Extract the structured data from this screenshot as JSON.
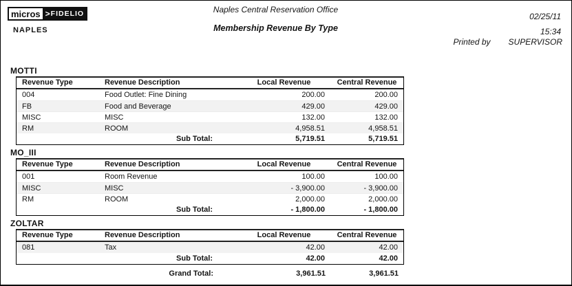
{
  "header": {
    "logo": {
      "micros": "micros",
      "arrow": ">",
      "fidelio": "FIDELIO"
    },
    "office_code": "NAPLES",
    "office_name": "Naples Central Reservation Office",
    "report_title": "Membership Revenue By Type",
    "date": "02/25/11",
    "time": "15:34",
    "printed_by_label": "Printed by",
    "printed_by": "SUPERVISOR"
  },
  "table": {
    "headers": {
      "type": "Revenue Type",
      "desc": "Revenue Description",
      "local": "Local Revenue",
      "central": "Central Revenue"
    },
    "sub_total_label": "Sub Total:",
    "grand_total_label": "Grand Total:"
  },
  "sections": [
    {
      "name": "MOTTI",
      "rows": [
        {
          "type": "004",
          "desc": "Food Outlet: Fine Dining",
          "local": "200.00",
          "central": "200.00"
        },
        {
          "type": "FB",
          "desc": "Food and Beverage",
          "local": "429.00",
          "central": "429.00"
        },
        {
          "type": "MISC",
          "desc": "MISC",
          "local": "132.00",
          "central": "132.00"
        },
        {
          "type": "RM",
          "desc": "ROOM",
          "local": "4,958.51",
          "central": "4,958.51"
        }
      ],
      "sub_total": {
        "local": "5,719.51",
        "central": "5,719.51"
      }
    },
    {
      "name": "MO_III",
      "rows": [
        {
          "type": "001",
          "desc": "Room Revenue",
          "local": "100.00",
          "central": "100.00"
        },
        {
          "type": "MISC",
          "desc": "MISC",
          "local": "- 3,900.00",
          "central": "- 3,900.00"
        },
        {
          "type": "RM",
          "desc": "ROOM",
          "local": "2,000.00",
          "central": "2,000.00"
        }
      ],
      "sub_total": {
        "local": "- 1,800.00",
        "central": "- 1,800.00"
      }
    },
    {
      "name": "ZOLTAR",
      "rows": [
        {
          "type": "081",
          "desc": "Tax",
          "local": "42.00",
          "central": "42.00"
        }
      ],
      "sub_total": {
        "local": "42.00",
        "central": "42.00"
      }
    }
  ],
  "grand_total": {
    "local": "3,961.51",
    "central": "3,961.51"
  }
}
